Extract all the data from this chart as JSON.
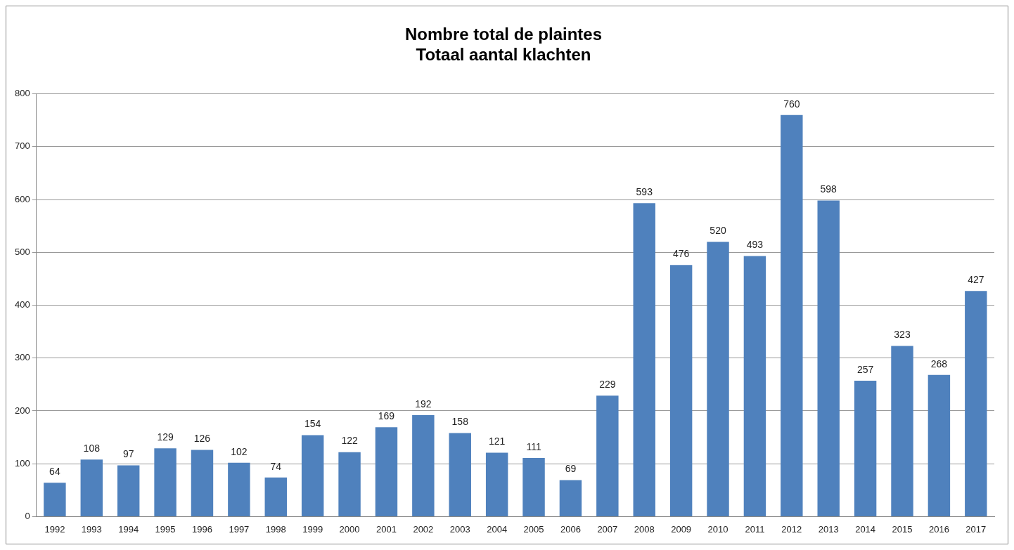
{
  "chart_data": {
    "type": "bar",
    "title": "Nombre total de plaintes\nTotaal aantal klachten",
    "categories": [
      "1992",
      "1993",
      "1994",
      "1995",
      "1996",
      "1997",
      "1998",
      "1999",
      "2000",
      "2001",
      "2002",
      "2003",
      "2004",
      "2005",
      "2006",
      "2007",
      "2008",
      "2009",
      "2010",
      "2011",
      "2012",
      "2013",
      "2014",
      "2015",
      "2016",
      "2017"
    ],
    "values": [
      64,
      108,
      97,
      129,
      126,
      102,
      74,
      154,
      122,
      169,
      192,
      158,
      121,
      111,
      69,
      229,
      593,
      476,
      520,
      493,
      760,
      598,
      257,
      323,
      268,
      427
    ],
    "color": "#4f81bd",
    "ylim": [
      0,
      800
    ],
    "yticks": [
      0,
      100,
      200,
      300,
      400,
      500,
      600,
      700,
      800
    ],
    "grid": "y",
    "data_labels": true,
    "legend": false
  }
}
